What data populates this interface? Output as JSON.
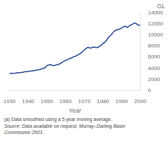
{
  "chart_data": {
    "type": "line",
    "xlabel": "Year",
    "ylabel": "GL",
    "color": "#1a3a8a",
    "grid": false,
    "xlim": [
      1930,
      2000
    ],
    "ylim": [
      0,
      14000
    ],
    "xticks": [
      1930,
      1940,
      1950,
      1960,
      1970,
      1980,
      1990,
      2000
    ],
    "yticks": [
      0,
      2000,
      4000,
      6000,
      8000,
      10000,
      12000,
      14000
    ],
    "annotations": [
      "(a) Data smoothed using a 5 year moving average.",
      "Source: Data available on request, Murray–Darling Basin\nCommission 2001."
    ],
    "x": [
      1930,
      1931,
      1932,
      1933,
      1934,
      1935,
      1936,
      1937,
      1938,
      1939,
      1940,
      1941,
      1942,
      1943,
      1944,
      1945,
      1946,
      1947,
      1948,
      1949,
      1950,
      1951,
      1952,
      1953,
      1954,
      1955,
      1956,
      1957,
      1958,
      1959,
      1960,
      1961,
      1962,
      1963,
      1964,
      1965,
      1966,
      1967,
      1968,
      1969,
      1970,
      1971,
      1972,
      1973,
      1974,
      1975,
      1976,
      1977,
      1978,
      1979,
      1980,
      1981,
      1982,
      1983,
      1984,
      1985,
      1986,
      1987,
      1988,
      1989,
      1990,
      1991,
      1992,
      1993,
      1994,
      1995,
      1996,
      1997,
      1998,
      1999,
      2000
    ],
    "values": [
      3050,
      3080,
      3100,
      3130,
      3170,
      3200,
      3230,
      3280,
      3350,
      3400,
      3430,
      3480,
      3520,
      3580,
      3650,
      3700,
      3760,
      3850,
      3980,
      4100,
      4500,
      4600,
      4650,
      4480,
      4520,
      4600,
      4700,
      4820,
      5050,
      5250,
      5450,
      5550,
      5750,
      5850,
      6050,
      6150,
      6300,
      6500,
      6700,
      7000,
      7300,
      7600,
      7800,
      7650,
      7700,
      7850,
      7780,
      7720,
      7950,
      8150,
      8500,
      8700,
      9100,
      9600,
      9900,
      10300,
      10700,
      10900,
      11000,
      11100,
      11300,
      11500,
      11600,
      11350,
      11650,
      11850,
      12000,
      12200,
      12000,
      11750,
      11850
    ]
  }
}
